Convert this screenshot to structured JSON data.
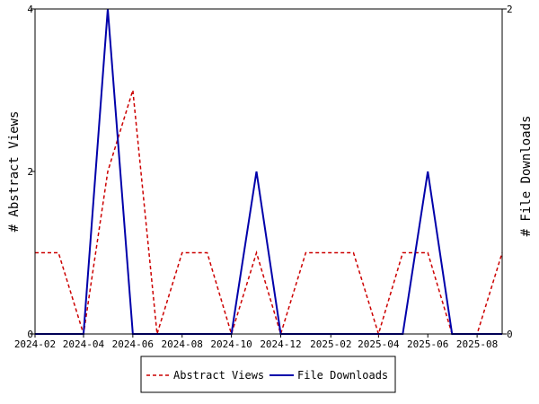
{
  "chart_data": {
    "type": "line",
    "x": [
      "2024-02",
      "2024-03",
      "2024-04",
      "2024-05",
      "2024-06",
      "2024-07",
      "2024-08",
      "2024-09",
      "2024-10",
      "2024-11",
      "2024-12",
      "2025-01",
      "2025-02",
      "2025-03",
      "2025-04",
      "2025-05",
      "2025-06",
      "2025-07",
      "2025-08",
      "2025-09"
    ],
    "x_tick_labels": [
      "2024-02",
      "2024-04",
      "2024-06",
      "2024-08",
      "2024-10",
      "2024-12",
      "2025-02",
      "2025-04",
      "2025-06",
      "2025-08"
    ],
    "ylabel_left": "# Abstract Views",
    "ylabel_right": "# File Downloads",
    "ylim_left": [
      0,
      4
    ],
    "ylim_right": [
      0,
      2
    ],
    "yticks_left": [
      "0",
      "2",
      "4"
    ],
    "yticks_right": [
      "0",
      "2"
    ],
    "series": [
      {
        "name": "Abstract Views",
        "axis": "left",
        "color": "#cc0000",
        "style": "dashed",
        "points": [
          [
            "2024-02-01",
            1
          ],
          [
            "2024-03-01",
            1
          ],
          [
            "2024-04-01",
            0
          ],
          [
            "2024-05-01",
            2
          ],
          [
            "2024-06-01",
            3
          ],
          [
            "2024-07-01",
            0
          ],
          [
            "2024-08-01",
            1
          ],
          [
            "2024-09-01",
            1
          ],
          [
            "2024-10-01",
            0
          ],
          [
            "2024-11-01",
            1
          ],
          [
            "2024-12-01",
            0
          ],
          [
            "2025-01-01",
            1
          ],
          [
            "2025-02-01",
            1
          ],
          [
            "2025-03-01",
            1
          ],
          [
            "2025-04-01",
            0
          ],
          [
            "2025-05-01",
            1
          ],
          [
            "2025-06-01",
            1
          ],
          [
            "2025-07-01",
            0
          ],
          [
            "2025-08-01",
            0
          ],
          [
            "2025-09-01",
            1
          ]
        ]
      },
      {
        "name": "File Downloads",
        "axis": "right",
        "color": "#0000aa",
        "style": "solid",
        "points": [
          [
            "2024-02-01",
            0
          ],
          [
            "2024-03-01",
            0
          ],
          [
            "2024-04-01",
            0
          ],
          [
            "2024-05-01",
            2
          ],
          [
            "2024-06-01",
            0
          ],
          [
            "2024-07-01",
            0
          ],
          [
            "2024-08-01",
            0
          ],
          [
            "2024-09-01",
            0
          ],
          [
            "2024-10-01",
            0
          ],
          [
            "2024-11-01",
            1
          ],
          [
            "2024-12-01",
            0
          ],
          [
            "2025-01-01",
            0
          ],
          [
            "2025-02-01",
            0
          ],
          [
            "2025-03-01",
            0
          ],
          [
            "2025-04-01",
            0
          ],
          [
            "2025-05-01",
            0
          ],
          [
            "2025-06-01",
            1
          ],
          [
            "2025-07-01",
            0
          ],
          [
            "2025-08-01",
            0
          ],
          [
            "2025-09-01",
            0
          ]
        ]
      }
    ],
    "legend_position": "bottom-center",
    "grid": false
  }
}
